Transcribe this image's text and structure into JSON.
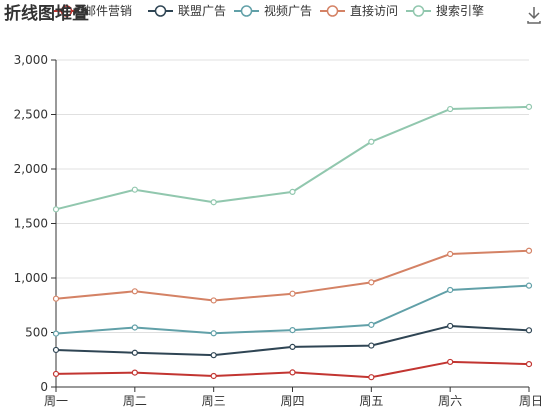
{
  "chart_data": {
    "type": "line",
    "title": "折线图堆叠",
    "categories": [
      "周一",
      "周二",
      "周三",
      "周四",
      "周五",
      "周六",
      "周日"
    ],
    "stacked": true,
    "ylim": [
      0,
      3000
    ],
    "yticks": [
      "0",
      "500",
      "1,000",
      "1,500",
      "2,000",
      "2,500",
      "3,000"
    ],
    "ytick_values": [
      0,
      500,
      1000,
      1500,
      2000,
      2500,
      3000
    ],
    "grid": true,
    "legend_position": "top",
    "series": [
      {
        "name": "邮件营销",
        "color": "#c23531",
        "values": [
          120,
          132,
          101,
          134,
          90,
          230,
          210
        ]
      },
      {
        "name": "联盟广告",
        "color": "#2f4554",
        "values": [
          220,
          182,
          191,
          234,
          290,
          330,
          310
        ]
      },
      {
        "name": "视频广告",
        "color": "#61a0a8",
        "values": [
          150,
          232,
          201,
          154,
          190,
          330,
          410
        ]
      },
      {
        "name": "直接访问",
        "color": "#d48265",
        "values": [
          320,
          332,
          301,
          334,
          390,
          330,
          320
        ]
      },
      {
        "name": "搜索引擎",
        "color": "#91c7ae",
        "values": [
          820,
          932,
          901,
          934,
          1290,
          1330,
          1320
        ]
      }
    ]
  },
  "toolbox": {
    "save_icon": "download-icon"
  }
}
